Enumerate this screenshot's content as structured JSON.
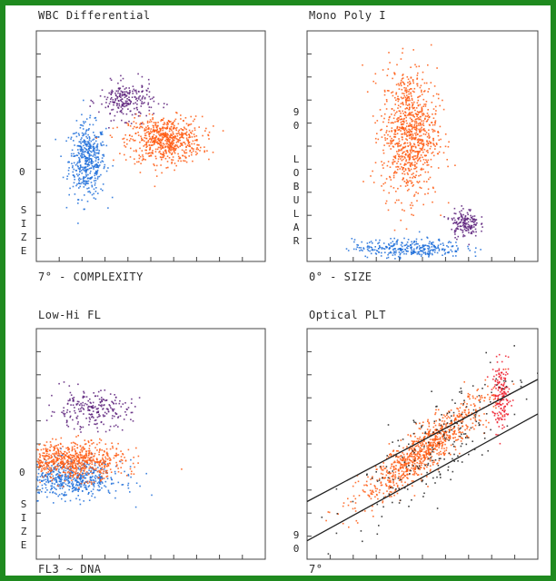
{
  "chart_data": [
    {
      "type": "scatter",
      "title": "WBC Differential",
      "xlabel": "7° - COMPLEXITY",
      "ylabel": "0 SIZE",
      "ylabel_tick": "0",
      "ylabel_letters": "SIZE",
      "xlim": [
        0,
        100
      ],
      "ylim": [
        0,
        100
      ],
      "series": [
        {
          "color": "#1e6fd9",
          "center": [
            22,
            44
          ],
          "spread": [
            4,
            8
          ],
          "count": 450
        },
        {
          "color": "#ff5a10",
          "center": [
            56,
            53
          ],
          "spread": [
            8,
            5
          ],
          "count": 650
        },
        {
          "color": "#5a1e7a",
          "center": [
            39,
            70
          ],
          "spread": [
            6,
            4
          ],
          "count": 230
        }
      ]
    },
    {
      "type": "scatter",
      "title": "Mono Poly I",
      "xlabel": "0° - SIZE",
      "ylabel": "90 LOBULAR",
      "ylabel_tick": "9 0",
      "ylabel_letters": "LOBULAR",
      "xlim": [
        0,
        100
      ],
      "ylim": [
        0,
        100
      ],
      "series": [
        {
          "color": "#ff5a10",
          "center": [
            44,
            56
          ],
          "spread": [
            6,
            14
          ],
          "count": 900
        },
        {
          "color": "#1e6fd9",
          "center": [
            44,
            6
          ],
          "spread": [
            12,
            2
          ],
          "count": 320
        },
        {
          "color": "#5a1e7a",
          "center": [
            68,
            17
          ],
          "spread": [
            3,
            3
          ],
          "count": 160
        }
      ]
    },
    {
      "type": "scatter",
      "title": "Low-Hi FL",
      "xlabel": "FL3 ~ DNA",
      "ylabel": "0 SIZE",
      "ylabel_tick": "0",
      "ylabel_letters": "SIZE",
      "xlim": [
        0,
        100
      ],
      "ylim": [
        0,
        100
      ],
      "series": [
        {
          "color": "#1e6fd9",
          "center": [
            15,
            35
          ],
          "spread": [
            11,
            4
          ],
          "count": 550
        },
        {
          "color": "#ff5a10",
          "center": [
            16,
            43
          ],
          "spread": [
            11,
            4
          ],
          "count": 700
        },
        {
          "color": "#5a1e7a",
          "center": [
            23,
            65
          ],
          "spread": [
            9,
            4
          ],
          "count": 230
        }
      ]
    },
    {
      "type": "scatter",
      "title": "Optical PLT",
      "xlabel": "7°",
      "ylabel": "9 0",
      "ylabel_tick": "9 0",
      "ylabel_letters": "",
      "xlim": [
        0,
        100
      ],
      "ylim": [
        0,
        100
      ],
      "series": [
        {
          "color": "#ff5a10",
          "center": [
            51,
            48
          ],
          "spread": [
            14,
            5
          ],
          "count": 900,
          "tilt": 0.75
        },
        {
          "color": "#ee1a2a",
          "center": [
            84,
            71
          ],
          "spread": [
            2,
            7
          ],
          "count": 170
        },
        {
          "color": "#222222",
          "center": [
            55,
            50
          ],
          "spread": [
            18,
            10
          ],
          "count": 220,
          "tilt": 0.75
        }
      ],
      "gate_lines": [
        {
          "x": [
            0,
            100
          ],
          "y": [
            25,
            78
          ]
        },
        {
          "x": [
            0,
            100
          ],
          "y": [
            8,
            63
          ]
        }
      ]
    }
  ]
}
